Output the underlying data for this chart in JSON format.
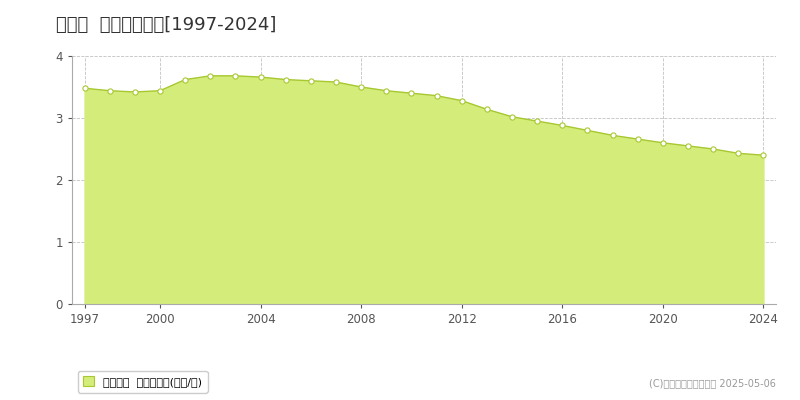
{
  "title": "新冠町  基準地価推移[1997-2024]",
  "years": [
    1997,
    1998,
    1999,
    2000,
    2001,
    2002,
    2003,
    2004,
    2005,
    2006,
    2007,
    2008,
    2009,
    2010,
    2011,
    2012,
    2013,
    2014,
    2015,
    2016,
    2017,
    2018,
    2019,
    2020,
    2021,
    2022,
    2023,
    2024
  ],
  "values": [
    3.48,
    3.44,
    3.42,
    3.44,
    3.62,
    3.68,
    3.68,
    3.66,
    3.62,
    3.6,
    3.58,
    3.5,
    3.44,
    3.4,
    3.36,
    3.28,
    3.14,
    3.02,
    2.95,
    2.88,
    2.8,
    2.72,
    2.66,
    2.6,
    2.55,
    2.5,
    2.43,
    2.4
  ],
  "ylim": [
    0,
    4
  ],
  "yticks": [
    0,
    1,
    2,
    3,
    4
  ],
  "xticks": [
    1997,
    2000,
    2004,
    2008,
    2012,
    2016,
    2020,
    2024
  ],
  "fill_color": "#d4ed7a",
  "line_color": "#a8c832",
  "marker_facecolor": "#ffffff",
  "marker_edgecolor": "#a8c832",
  "grid_color": "#bbbbbb",
  "background_color": "#ffffff",
  "plot_bg_color": "#ffffff",
  "title_fontsize": 13,
  "legend_label": "基準地価  平均坤単価(万円/坤)",
  "copyright_text": "(C)土地価格ドットコム 2025-05-06",
  "xlim_min": 1996.5,
  "xlim_max": 2024.5
}
